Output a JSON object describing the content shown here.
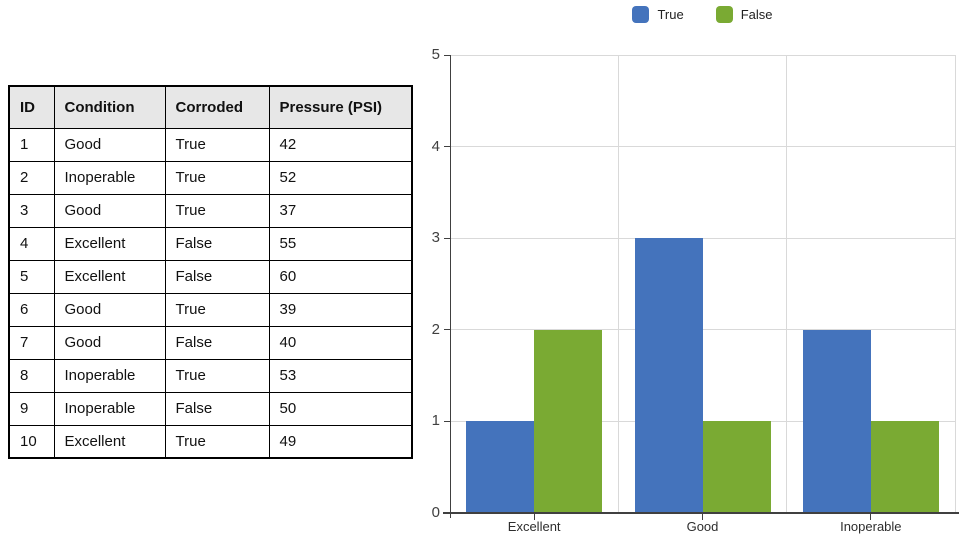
{
  "table": {
    "headers": [
      "ID",
      "Condition",
      "Corroded",
      "Pressure (PSI)"
    ],
    "rows": [
      [
        "1",
        "Good",
        "True",
        "42"
      ],
      [
        "2",
        "Inoperable",
        "True",
        "52"
      ],
      [
        "3",
        "Good",
        "True",
        "37"
      ],
      [
        "4",
        "Excellent",
        "False",
        "55"
      ],
      [
        "5",
        "Excellent",
        "False",
        "60"
      ],
      [
        "6",
        "Good",
        "True",
        "39"
      ],
      [
        "7",
        "Good",
        "False",
        "40"
      ],
      [
        "8",
        "Inoperable",
        "True",
        "53"
      ],
      [
        "9",
        "Inoperable",
        "False",
        "50"
      ],
      [
        "10",
        "Excellent",
        "True",
        "49"
      ]
    ]
  },
  "chart_data": {
    "type": "bar",
    "title": "",
    "xlabel": "",
    "ylabel": "",
    "categories": [
      "Excellent",
      "Good",
      "Inoperable"
    ],
    "series": [
      {
        "name": "True",
        "color": "#4473bc",
        "values": [
          1,
          3,
          2
        ]
      },
      {
        "name": "False",
        "color": "#7aaa33",
        "values": [
          2,
          1,
          1
        ]
      }
    ],
    "ylim": [
      0,
      5
    ],
    "yticks": [
      0,
      1,
      2,
      3,
      4,
      5
    ],
    "grid": true,
    "legend_position": "top-center",
    "gridline_color": "#d9d9d9",
    "axis_color": "#404040"
  }
}
